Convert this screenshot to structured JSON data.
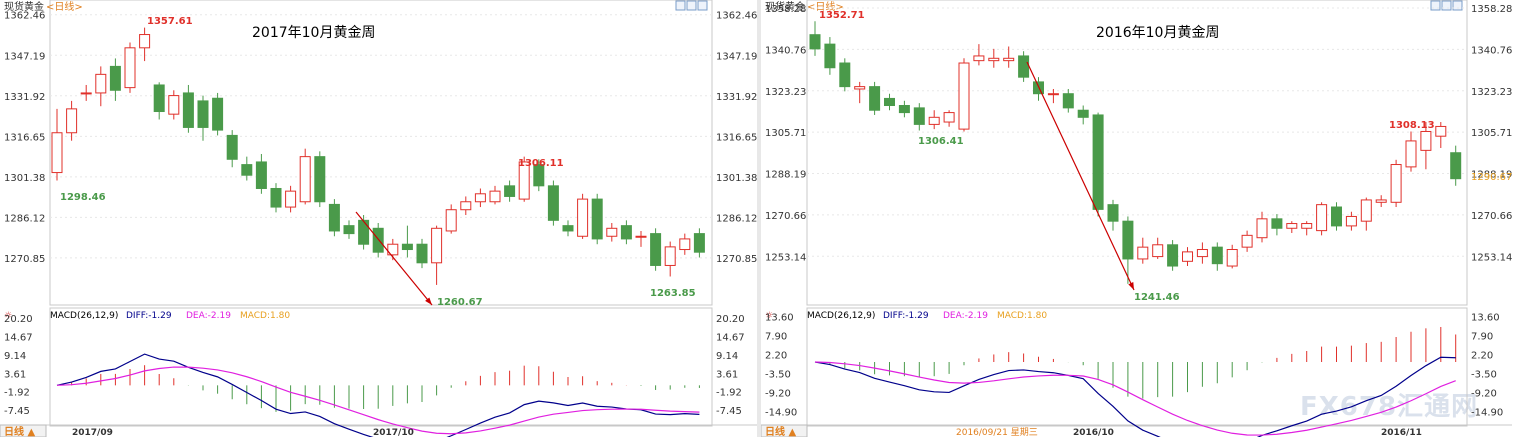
{
  "panels": [
    {
      "header": "现货黄金",
      "period_label": "<日线>",
      "title": "2017年10月黄金周",
      "period_button": "日线",
      "price_axis": {
        "ticks": [
          "1362.46",
          "1347.19",
          "1331.92",
          "1316.65",
          "1301.38",
          "1286.12",
          "1270.85"
        ],
        "range": [
          1258,
          1365
        ]
      },
      "macd_label": "MACD(26,12,9)",
      "macd_diff": "DIFF:-1.29",
      "macd_dea": "DEA:-2.19",
      "macd_val": "MACD:1.80",
      "macd_axis": {
        "ticks": [
          "20.20",
          "14.67",
          "9.14",
          "3.61",
          "-1.92",
          "-7.45"
        ],
        "range": [
          -11,
          22
        ]
      },
      "x_labels": [
        "2017/09",
        "2017/10"
      ],
      "annotations": {
        "high": "1357.61",
        "low": "1298.46",
        "valley": "1260.67",
        "peak": "1306.11",
        "last_low": "1263.85"
      }
    },
    {
      "header": "现货黄金",
      "period_label": "<日线>",
      "title": "2016年10月黄金周",
      "period_button": "日线",
      "price_axis": {
        "ticks": [
          "1358.28",
          "1340.76",
          "1323.23",
          "1305.71",
          "1288.19",
          "1270.66",
          "1253.14"
        ],
        "range": [
          1238,
          1360
        ]
      },
      "current_price": "1290.67",
      "macd_label": "MACD(26,12,9)",
      "macd_diff": "DIFF:-1.29",
      "macd_dea": "DEA:-2.19",
      "macd_val": "MACD:1.80",
      "macd_axis": {
        "ticks": [
          "13.60",
          "7.90",
          "2.20",
          "-3.50",
          "-9.20",
          "-14.90"
        ],
        "range": [
          -18,
          15
        ]
      },
      "x_labels": [
        "2016/09/21 星期三",
        "2016/10",
        "2016/11"
      ],
      "annotations": {
        "high": "1352.71",
        "low": "1306.41",
        "valley": "1241.46",
        "peak": "1308.13"
      }
    }
  ],
  "watermark": "FX678汇通网",
  "colors": {
    "up": "#e0302a",
    "down": "#4a9a4a",
    "diff": "#00008b",
    "dea": "#e020e0",
    "macdText": "#e8a020",
    "arrow": "#cc0000"
  },
  "chart_data": [
    {
      "type": "candlestick",
      "title": "2017年10月黄金周",
      "x": [
        "2017/09",
        "2017/10"
      ],
      "ylim": [
        1258,
        1365
      ],
      "series": [
        {
          "name": "OHLC",
          "values": [
            [
              1303,
              1318,
              1300,
              1327
            ],
            [
              1318,
              1327,
              1315,
              1330
            ],
            [
              1333,
              1333,
              1330,
              1336
            ],
            [
              1333,
              1340,
              1328,
              1343
            ],
            [
              1343,
              1334,
              1330,
              1346
            ],
            [
              1335,
              1350,
              1333,
              1352
            ],
            [
              1350,
              1355,
              1345,
              1357.61
            ],
            [
              1336,
              1326,
              1323,
              1337
            ],
            [
              1325,
              1332,
              1323,
              1334
            ],
            [
              1333,
              1320,
              1318,
              1336
            ],
            [
              1330,
              1320,
              1315,
              1332
            ],
            [
              1331,
              1319,
              1317,
              1333
            ],
            [
              1317,
              1308,
              1305,
              1319
            ],
            [
              1306,
              1302,
              1300,
              1309
            ],
            [
              1307,
              1297,
              1295,
              1310
            ],
            [
              1297,
              1290,
              1288,
              1299
            ],
            [
              1290,
              1296,
              1288,
              1298
            ],
            [
              1292,
              1309,
              1291,
              1312
            ],
            [
              1309,
              1292,
              1290,
              1311
            ],
            [
              1291,
              1281,
              1279,
              1293
            ],
            [
              1283,
              1280,
              1278,
              1285
            ],
            [
              1285,
              1276,
              1274,
              1287
            ],
            [
              1282,
              1273,
              1271,
              1284
            ],
            [
              1272,
              1276,
              1270,
              1278
            ],
            [
              1276,
              1274,
              1271,
              1283
            ],
            [
              1276,
              1269,
              1267,
              1278
            ],
            [
              1269,
              1282,
              1260.67,
              1283
            ],
            [
              1281,
              1289,
              1280,
              1291
            ],
            [
              1289,
              1292,
              1287,
              1294
            ],
            [
              1292,
              1295,
              1290,
              1297
            ],
            [
              1292,
              1296,
              1291,
              1298
            ],
            [
              1298,
              1294,
              1292,
              1300
            ],
            [
              1293,
              1307,
              1292,
              1309
            ],
            [
              1306,
              1298,
              1296,
              1308
            ],
            [
              1298,
              1285,
              1283,
              1300
            ],
            [
              1283,
              1281,
              1279,
              1285
            ],
            [
              1279,
              1293,
              1278,
              1295
            ],
            [
              1293,
              1278,
              1276,
              1295
            ],
            [
              1279,
              1282,
              1277,
              1284
            ],
            [
              1283,
              1278,
              1276,
              1285
            ],
            [
              1279,
              1279,
              1275,
              1281
            ],
            [
              1280,
              1268,
              1266,
              1282
            ],
            [
              1268,
              1275,
              1263.85,
              1277
            ],
            [
              1274,
              1278,
              1272,
              1280
            ],
            [
              1280,
              1273,
              1271,
              1282
            ]
          ]
        }
      ]
    },
    {
      "type": "candlestick",
      "title": "2016年10月黄金周",
      "x": [
        "2016/10",
        "2016/11"
      ],
      "ylim": [
        1238,
        1360
      ],
      "series": [
        {
          "name": "OHLC",
          "values": [
            [
              1347,
              1341,
              1338,
              1352.71
            ],
            [
              1343,
              1333,
              1330,
              1346
            ],
            [
              1335,
              1325,
              1323,
              1337
            ],
            [
              1324,
              1325,
              1318,
              1327
            ],
            [
              1325,
              1315,
              1313,
              1327
            ],
            [
              1320,
              1317,
              1315,
              1322
            ],
            [
              1317,
              1314,
              1312,
              1319
            ],
            [
              1316,
              1309,
              1306.41,
              1318
            ],
            [
              1309,
              1312,
              1307,
              1315
            ],
            [
              1310,
              1314,
              1308,
              1315
            ],
            [
              1307,
              1335,
              1306,
              1337
            ],
            [
              1336,
              1338,
              1334,
              1343
            ],
            [
              1336,
              1337,
              1333,
              1341
            ],
            [
              1336,
              1337,
              1333,
              1342
            ],
            [
              1338,
              1329,
              1327,
              1340
            ],
            [
              1327,
              1322,
              1319,
              1329
            ],
            [
              1322,
              1322,
              1318,
              1324
            ],
            [
              1322,
              1316,
              1314,
              1324
            ],
            [
              1315,
              1312,
              1309,
              1317
            ],
            [
              1313,
              1273,
              1270,
              1314
            ],
            [
              1275,
              1268,
              1264,
              1277
            ],
            [
              1268,
              1252,
              1241.46,
              1270
            ],
            [
              1252,
              1257,
              1250,
              1261
            ],
            [
              1253,
              1258,
              1252,
              1261
            ],
            [
              1258,
              1249,
              1247,
              1260
            ],
            [
              1251,
              1255,
              1249,
              1257
            ],
            [
              1253,
              1256,
              1250,
              1259
            ],
            [
              1257,
              1250,
              1247,
              1259
            ],
            [
              1249,
              1256,
              1248,
              1258
            ],
            [
              1257,
              1262,
              1255,
              1264
            ],
            [
              1261,
              1269,
              1259,
              1272
            ],
            [
              1269,
              1265,
              1262,
              1271
            ],
            [
              1265,
              1267,
              1263,
              1268
            ],
            [
              1265,
              1267,
              1262,
              1268
            ],
            [
              1264,
              1275,
              1262,
              1276
            ],
            [
              1274,
              1266,
              1264,
              1276
            ],
            [
              1266,
              1270,
              1264,
              1272
            ],
            [
              1268,
              1277,
              1264,
              1278
            ],
            [
              1276,
              1277,
              1274,
              1279
            ],
            [
              1276,
              1292,
              1274,
              1294
            ],
            [
              1291,
              1302,
              1289,
              1306
            ],
            [
              1298,
              1306,
              1290,
              1310
            ],
            [
              1304,
              1308.13,
              1299,
              1310
            ],
            [
              1297,
              1286,
              1283,
              1300
            ]
          ]
        }
      ]
    }
  ]
}
